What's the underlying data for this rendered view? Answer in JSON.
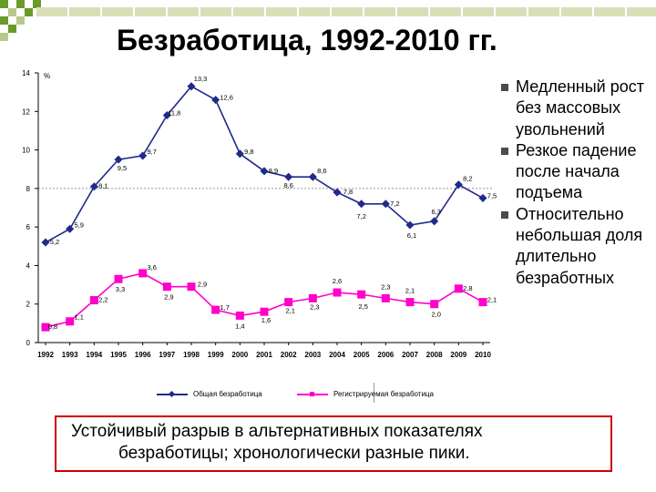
{
  "title": "Безработица, 1992-2010 гг.",
  "colors": {
    "series1": "#1f2a8a",
    "series2": "#ff00cc",
    "box_border": "#cc0000",
    "accent_green": "#6a9a2a"
  },
  "bullets": [
    {
      "icon": "square-bullet-icon",
      "text": "Медленный рост без массовых увольнений"
    },
    {
      "icon": "square-bullet-icon",
      "text": "Резкое падение после начала подъема"
    },
    {
      "icon": "square-bullet-icon",
      "text": "Относительно небольшая доля длительно безработных"
    }
  ],
  "note": {
    "line1": "Устойчивый разрыв в альтернативных показателях",
    "line2": "безработицы; хронологически разные пики."
  },
  "chart_data": {
    "type": "line",
    "ylabel": "%",
    "ylim": [
      0,
      14
    ],
    "yticks": [
      0,
      2,
      4,
      6,
      8,
      10,
      12,
      14
    ],
    "grid": false,
    "reference_line_y": 8,
    "legend_position": "bottom",
    "categories": [
      "1992",
      "1993",
      "1994",
      "1995",
      "1996",
      "1997",
      "1998",
      "1999",
      "2000",
      "2001",
      "2002",
      "2003",
      "2004",
      "2005",
      "2006",
      "2007",
      "2008",
      "2009",
      "2010"
    ],
    "series": [
      {
        "name": "Общая безработица",
        "values": [
          5.2,
          5.9,
          8.1,
          9.5,
          9.7,
          11.8,
          13.3,
          12.6,
          9.8,
          8.9,
          8.6,
          8.6,
          7.8,
          7.2,
          7.2,
          6.1,
          6.3,
          8.2,
          7.5
        ],
        "labels": [
          "5,2",
          "5,9",
          "8,1",
          "9,5",
          "9,7",
          "11,8",
          "13,3",
          "12,6",
          "9,8",
          "8,9",
          "8,6",
          "8,6",
          "7,8",
          "7,2",
          "7,2",
          "6,1",
          "6,3",
          "8,2",
          "7,5"
        ]
      },
      {
        "name": "Регистрируемая безработица",
        "values": [
          0.8,
          1.1,
          2.2,
          3.3,
          3.6,
          2.9,
          2.9,
          1.7,
          1.4,
          1.6,
          2.1,
          2.3,
          2.6,
          2.5,
          2.3,
          2.1,
          2.0,
          2.8,
          2.1
        ],
        "labels": [
          "0,8",
          "1,1",
          "2,2",
          "3,3",
          "3,6",
          "2,9",
          "2,9",
          "1,7",
          "1,4",
          "1,6",
          "2,1",
          "2,3",
          "2,6",
          "2,5",
          "2,3",
          "2,1",
          "2,0",
          "2,8",
          "2,1"
        ]
      }
    ]
  }
}
